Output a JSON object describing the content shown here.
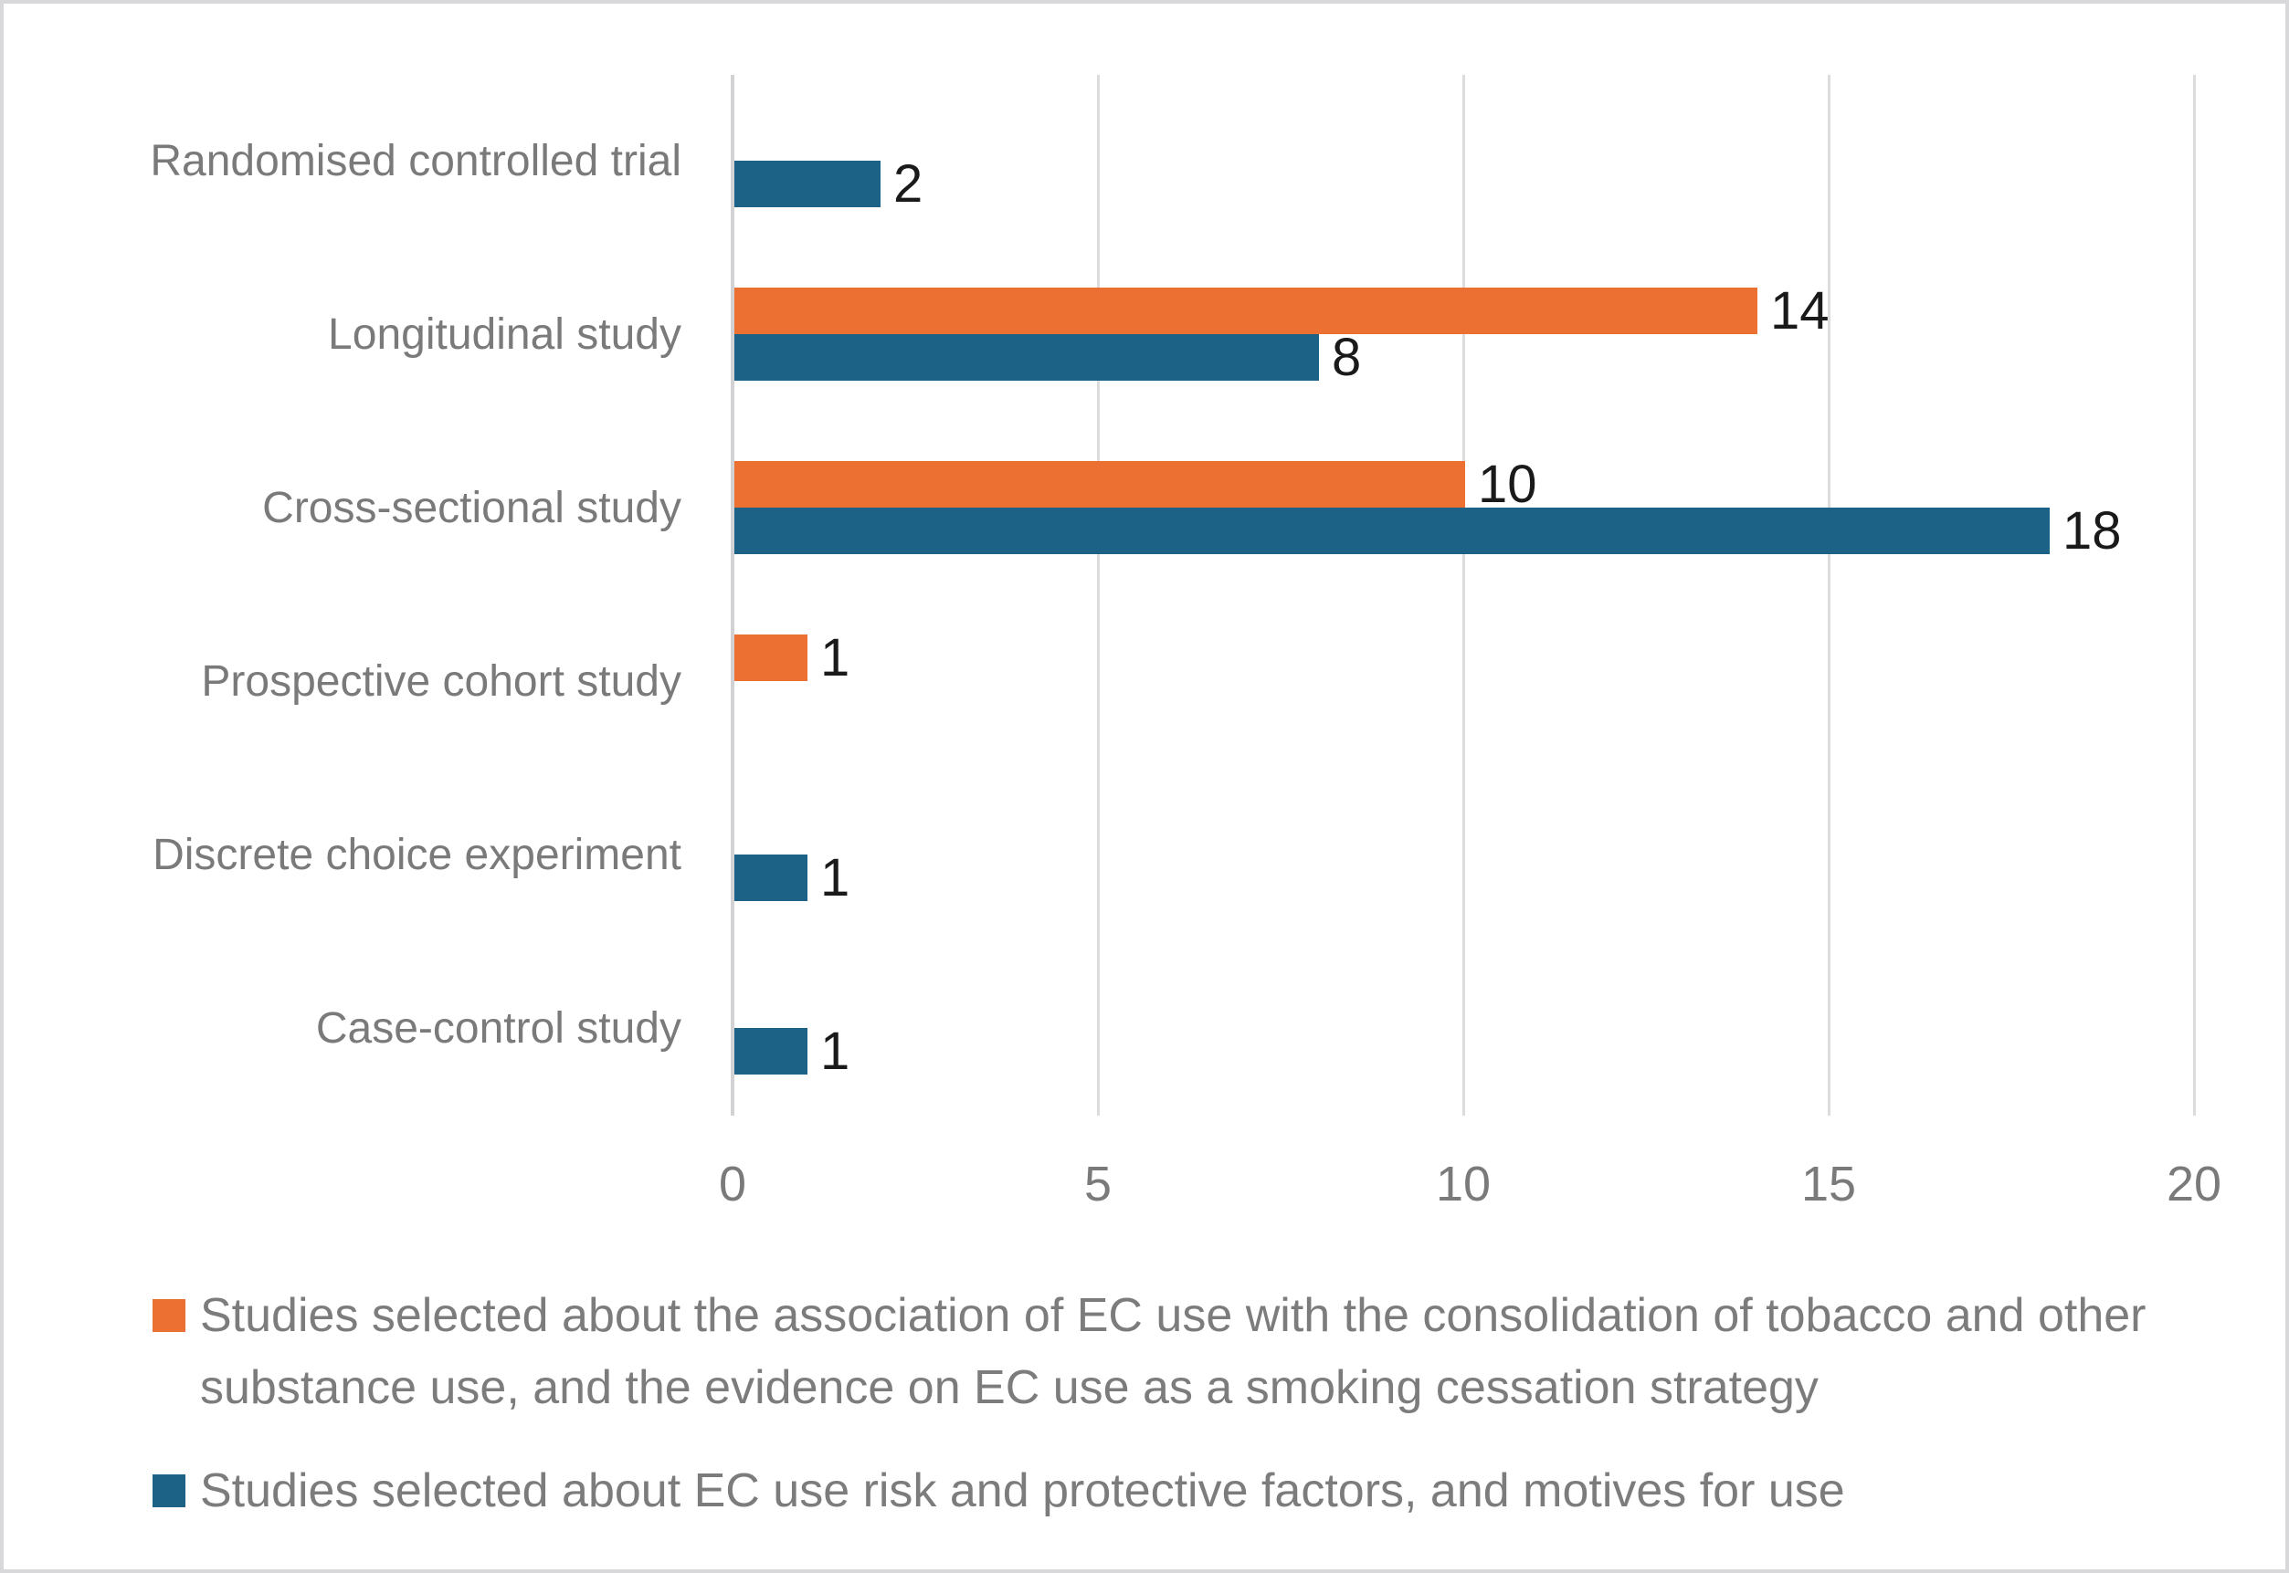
{
  "chart_data": {
    "type": "bar",
    "orientation": "horizontal",
    "title": "",
    "categories": [
      "Randomised controlled trial",
      "Longitudinal study",
      "Cross-sectional study",
      "Prospective cohort study",
      "Discrete choice experiment",
      "Case-control study"
    ],
    "series": [
      {
        "name": "Studies selected about the association of EC use with the consolidation of tobacco and other substance use, and the evidence on EC use as a smoking cessation strategy",
        "color": "#ec7032",
        "values": [
          0,
          14,
          10,
          1,
          0,
          0
        ]
      },
      {
        "name": "Studies selected about EC use risk and protective factors, and motives for use",
        "color": "#1b6286",
        "values": [
          2,
          8,
          18,
          0,
          1,
          1
        ]
      }
    ],
    "x_axis": {
      "min": 0,
      "max": 20,
      "ticks": [
        0,
        5,
        10,
        15,
        20
      ]
    },
    "data_labels": true,
    "grid": true,
    "legend_position": "bottom-left"
  },
  "colors": {
    "background": "#ffffff",
    "border": "#d8d8db",
    "gridline": "#dcdcde",
    "axis_line": "#d2d2d5",
    "category_text": "#7a7a7a",
    "tick_text": "#7a7a7a",
    "legend_text": "#7c7c7c",
    "data_label_text": "#1a1a1a"
  }
}
